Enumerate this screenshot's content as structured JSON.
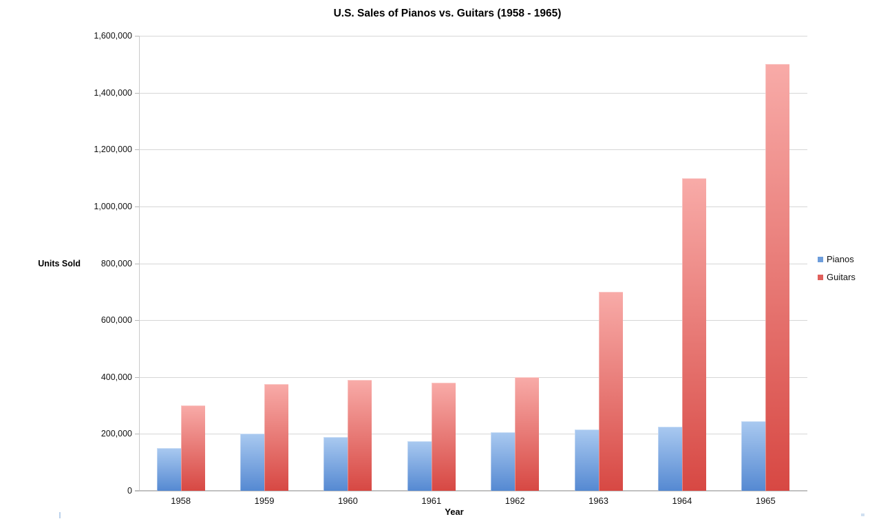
{
  "page": {
    "background": "#ffffff"
  },
  "chart_data": {
    "type": "bar",
    "title": "U.S. Sales of Pianos vs. Guitars (1958 - 1965)",
    "xlabel": "Year",
    "ylabel": "Units Sold",
    "categories": [
      "1958",
      "1959",
      "1960",
      "1961",
      "1962",
      "1963",
      "1964",
      "1965"
    ],
    "series": [
      {
        "name": "Pianos",
        "values": [
          150000,
          200000,
          190000,
          175000,
          205000,
          215000,
          225000,
          245000
        ],
        "color_top": "#a9c9f0",
        "color_bottom": "#5589d2",
        "legend_color": "#6d9ddb"
      },
      {
        "name": "Guitars",
        "values": [
          300000,
          375000,
          390000,
          380000,
          400000,
          700000,
          1100000,
          1500000
        ],
        "color_top": "#f8aba8",
        "color_bottom": "#d74843",
        "legend_color": "#e0605c"
      }
    ],
    "ylim": [
      0,
      1600000
    ],
    "ytick_step": 200000,
    "grid": true,
    "legend_position": "right"
  }
}
